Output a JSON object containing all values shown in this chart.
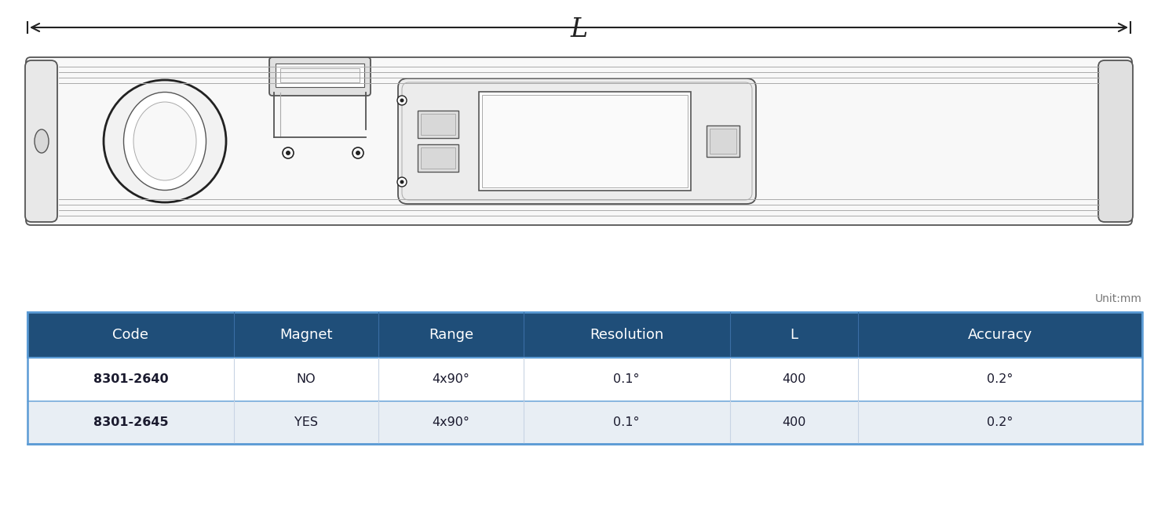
{
  "bg_color": "#ffffff",
  "drawing_color": "#555555",
  "drawing_color_dark": "#222222",
  "arrow_color": "#222222",
  "table_header_bg": "#1f4e79",
  "table_header_fg": "#ffffff",
  "table_row1_bg": "#ffffff",
  "table_row2_bg": "#e8eef4",
  "table_border_color": "#5b9bd5",
  "table_text_color": "#1a1a2e",
  "unit_text": "Unit:mm",
  "unit_color": "#777777",
  "headers": [
    "Code",
    "Magnet",
    "Range",
    "Resolution",
    "L",
    "Accuracy"
  ],
  "rows": [
    [
      "8301-2640",
      "NO",
      "4x90°",
      "0.1°",
      "400",
      "0.2°"
    ],
    [
      "8301-2645",
      "YES",
      "4x90°",
      "0.1°",
      "400",
      "0.2°"
    ]
  ],
  "dimension_label": "L",
  "dimension_color": "#222222",
  "body_facecolor": "#f8f8f8",
  "groove_color": "#aaaaaa",
  "detail_color": "#666666"
}
